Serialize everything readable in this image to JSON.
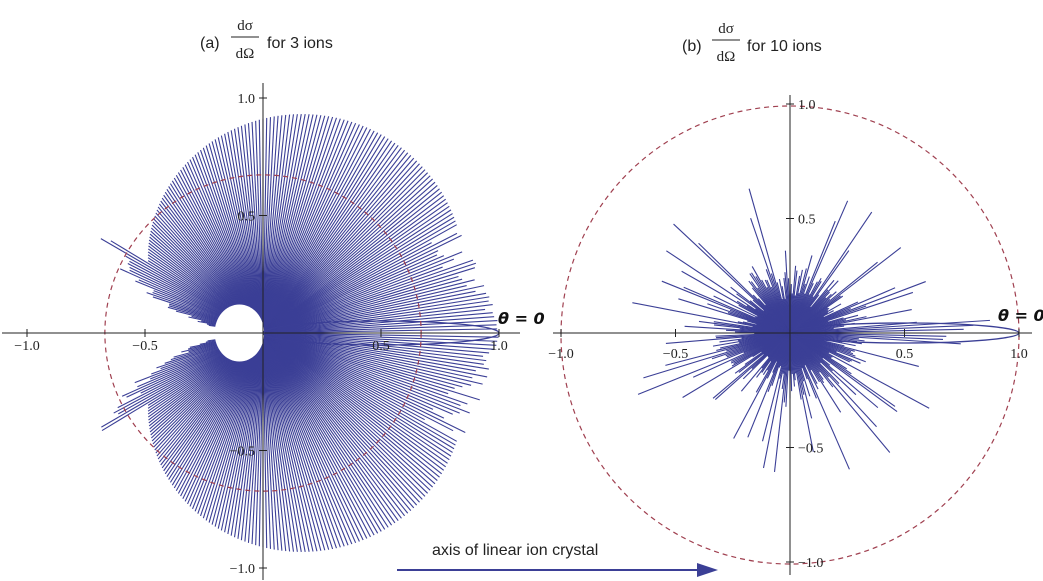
{
  "colors": {
    "pattern": "#3b3f96",
    "reference_circle": "#a04050",
    "axis": "#222222"
  },
  "panels": [
    {
      "label": "(a)",
      "frac_num": "dσ",
      "frac_den": "dΩ",
      "suffix": "for 3 ions",
      "theta_label": "θ = 0"
    },
    {
      "label": "(b)",
      "frac_num": "dσ",
      "frac_den": "dΩ",
      "suffix": "for 10 ions",
      "theta_label": "θ = 0"
    }
  ],
  "arrow": {
    "label": "axis of linear ion crystal"
  },
  "chart_data": [
    {
      "type": "polar",
      "title": "(a) dσ/dΩ for 3 ions",
      "xlim": [
        -1.0,
        1.0
      ],
      "ylim": [
        -1.0,
        1.0
      ],
      "x_ticks": [
        "-1.0",
        "-0.5",
        "0.5",
        "1.0"
      ],
      "y_ticks": [
        "1.0",
        "0.5",
        "-0.5",
        "-1.0"
      ],
      "reference_circle_radius": 0.67,
      "n_ions": 3,
      "series": [
        {
          "name": "",
          "values": [
            {
              "theta": 0.0,
              "r": 1.0
            },
            {
              "theta": 10,
              "r": 0.99
            },
            {
              "theta": 30,
              "r": 0.99
            },
            {
              "theta": 60,
              "r": 0.91
            },
            {
              "theta": 90,
              "r": 0.85
            },
            {
              "theta": 120,
              "r": 0.79
            },
            {
              "theta": 150,
              "r": 0.37
            },
            {
              "theta": 180,
              "r": 0.0
            }
          ]
        }
      ]
    },
    {
      "type": "polar",
      "title": "(b) dσ/dΩ for 10 ions",
      "xlim": [
        -1.0,
        1.0
      ],
      "ylim": [
        -1.0,
        1.0
      ],
      "x_ticks": [
        "-1.0",
        "-0.5",
        "0.5",
        "1.0"
      ],
      "y_ticks": [
        "1.0",
        "0.5",
        "-0.5",
        "-1.0"
      ],
      "reference_circle_radius": 1.0,
      "n_ions": 10,
      "series": [
        {
          "name": "",
          "values": [
            {
              "theta": 0.0,
              "r": 1.0
            },
            {
              "theta": 30,
              "r": 0.72
            },
            {
              "theta": 60,
              "r": 0.7
            },
            {
              "theta": 90,
              "r": 0.28
            },
            {
              "theta": 120,
              "r": 0.55
            },
            {
              "theta": 150,
              "r": 0.62
            },
            {
              "theta": 180,
              "r": 0.3
            }
          ]
        }
      ]
    }
  ]
}
